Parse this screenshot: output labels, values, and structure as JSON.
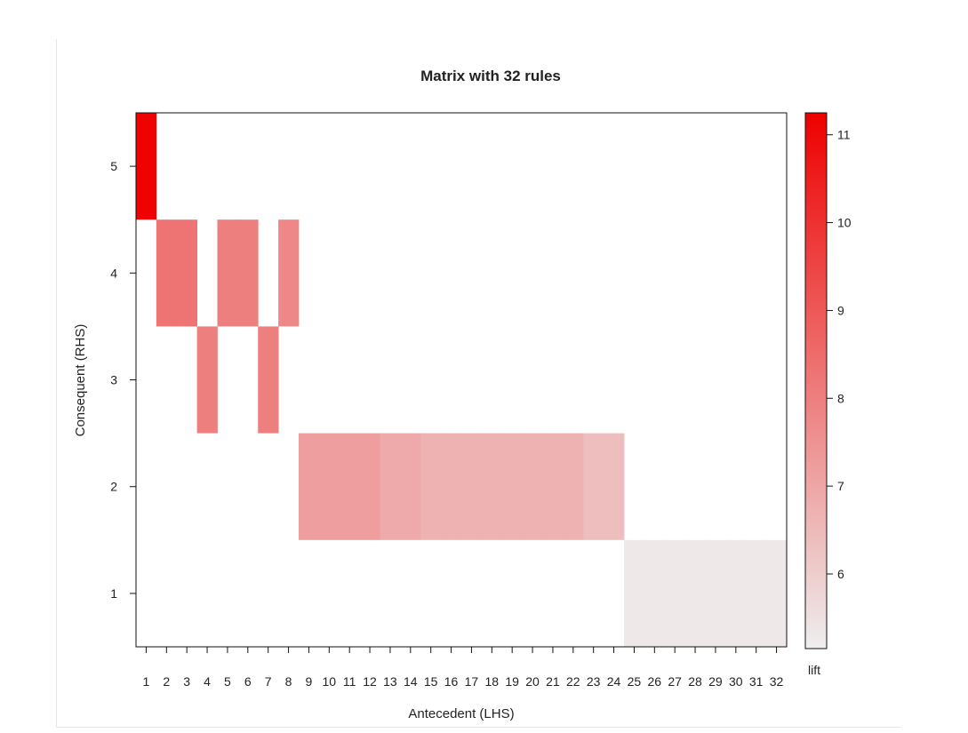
{
  "chart_data": {
    "type": "heatmap",
    "title": "Matrix with 32 rules",
    "xlabel": "Antecedent (LHS)",
    "ylabel": "Consequent (RHS)",
    "x_categories": [
      "1",
      "2",
      "3",
      "4",
      "5",
      "6",
      "7",
      "8",
      "9",
      "10",
      "11",
      "12",
      "13",
      "14",
      "15",
      "16",
      "17",
      "18",
      "19",
      "20",
      "21",
      "22",
      "23",
      "24",
      "25",
      "26",
      "27",
      "28",
      "29",
      "30",
      "31",
      "32"
    ],
    "y_categories": [
      "1",
      "2",
      "3",
      "4",
      "5"
    ],
    "cells": [
      {
        "x": 1,
        "y": 5,
        "lift": 11.2
      },
      {
        "x": 2,
        "y": 4,
        "lift": 8.3
      },
      {
        "x": 3,
        "y": 4,
        "lift": 8.3
      },
      {
        "x": 4,
        "y": 3,
        "lift": 8.0
      },
      {
        "x": 5,
        "y": 4,
        "lift": 8.0
      },
      {
        "x": 6,
        "y": 4,
        "lift": 8.0
      },
      {
        "x": 7,
        "y": 3,
        "lift": 8.0
      },
      {
        "x": 8,
        "y": 4,
        "lift": 7.8
      },
      {
        "x": 9,
        "y": 2,
        "lift": 7.2
      },
      {
        "x": 10,
        "y": 2,
        "lift": 7.2
      },
      {
        "x": 11,
        "y": 2,
        "lift": 7.2
      },
      {
        "x": 12,
        "y": 2,
        "lift": 7.2
      },
      {
        "x": 13,
        "y": 2,
        "lift": 6.9
      },
      {
        "x": 14,
        "y": 2,
        "lift": 6.9
      },
      {
        "x": 15,
        "y": 2,
        "lift": 6.7
      },
      {
        "x": 16,
        "y": 2,
        "lift": 6.7
      },
      {
        "x": 17,
        "y": 2,
        "lift": 6.7
      },
      {
        "x": 18,
        "y": 2,
        "lift": 6.7
      },
      {
        "x": 19,
        "y": 2,
        "lift": 6.7
      },
      {
        "x": 20,
        "y": 2,
        "lift": 6.7
      },
      {
        "x": 21,
        "y": 2,
        "lift": 6.7
      },
      {
        "x": 22,
        "y": 2,
        "lift": 6.7
      },
      {
        "x": 23,
        "y": 2,
        "lift": 6.4
      },
      {
        "x": 24,
        "y": 2,
        "lift": 6.4
      },
      {
        "x": 25,
        "y": 1,
        "lift": 5.3
      },
      {
        "x": 26,
        "y": 1,
        "lift": 5.3
      },
      {
        "x": 27,
        "y": 1,
        "lift": 5.3
      },
      {
        "x": 28,
        "y": 1,
        "lift": 5.3
      },
      {
        "x": 29,
        "y": 1,
        "lift": 5.3
      },
      {
        "x": 30,
        "y": 1,
        "lift": 5.3
      },
      {
        "x": 31,
        "y": 1,
        "lift": 5.3
      },
      {
        "x": 32,
        "y": 1,
        "lift": 5.3
      }
    ],
    "colorbar": {
      "label": "lift",
      "range": [
        5.15,
        11.25
      ],
      "ticks": [
        6,
        7,
        8,
        9,
        10,
        11
      ],
      "low_color": "#eeeeee",
      "high_color": "#ee0000"
    },
    "xlim": [
      0.5,
      32.5
    ],
    "ylim": [
      0.5,
      5.5
    ],
    "grid": false,
    "legend_position": "right"
  }
}
